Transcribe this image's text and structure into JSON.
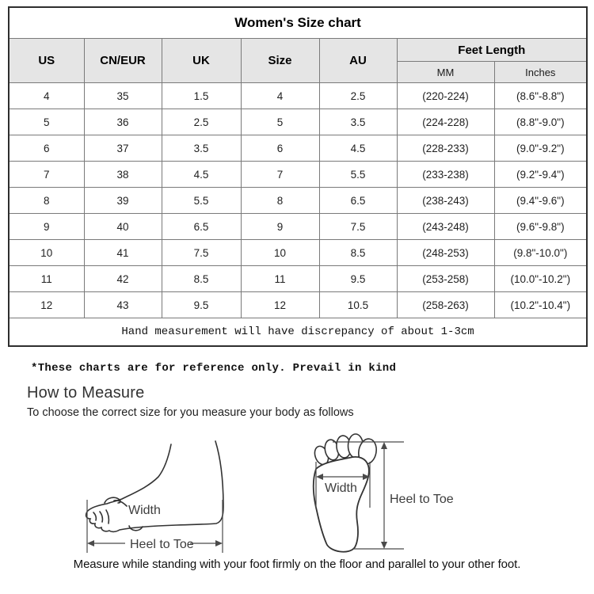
{
  "table": {
    "title": "Women's Size chart",
    "columns": [
      "US",
      "CN/EUR",
      "UK",
      "Size",
      "AU"
    ],
    "feet_length_header": "Feet Length",
    "feet_length_sub": [
      "MM",
      "Inches"
    ],
    "rows": [
      [
        "4",
        "35",
        "1.5",
        "4",
        "2.5",
        "(220-224)",
        "(8.6\"-8.8\")"
      ],
      [
        "5",
        "36",
        "2.5",
        "5",
        "3.5",
        "(224-228)",
        "(8.8\"-9.0\")"
      ],
      [
        "6",
        "37",
        "3.5",
        "6",
        "4.5",
        "(228-233)",
        "(9.0\"-9.2\")"
      ],
      [
        "7",
        "38",
        "4.5",
        "7",
        "5.5",
        "(233-238)",
        "(9.2\"-9.4\")"
      ],
      [
        "8",
        "39",
        "5.5",
        "8",
        "6.5",
        "(238-243)",
        "(9.4\"-9.6\")"
      ],
      [
        "9",
        "40",
        "6.5",
        "9",
        "7.5",
        "(243-248)",
        "(9.6\"-9.8\")"
      ],
      [
        "10",
        "41",
        "7.5",
        "10",
        "8.5",
        "(248-253)",
        "(9.8\"-10.0\")"
      ],
      [
        "11",
        "42",
        "8.5",
        "11",
        "9.5",
        "(253-258)",
        "(10.0\"-10.2\")"
      ],
      [
        "12",
        "43",
        "9.5",
        "12",
        "10.5",
        "(258-263)",
        "(10.2\"-10.4\")"
      ]
    ],
    "footnote": "Hand measurement will have discrepancy of about 1-3cm"
  },
  "notes": {
    "reference": "*These charts are for reference only. Prevail in kind",
    "how_to_measure_title": "How to Measure",
    "how_to_measure_subtitle": "To choose the correct size for you measure your body as follows",
    "caption": "Measure while standing with your foot firmly on the floor and parallel to your other foot."
  },
  "diagram": {
    "side_width_label": "Width",
    "side_heel_label": "Heel to Toe",
    "sole_width_label": "Width",
    "sole_heel_label": "Heel to Toe"
  },
  "colors": {
    "header_bg": "#e5e5e5",
    "outer_border": "#2e2e2e",
    "grid_border": "#7a7a7a",
    "text": "#1a1a1a",
    "diagram_line": "#333333"
  }
}
